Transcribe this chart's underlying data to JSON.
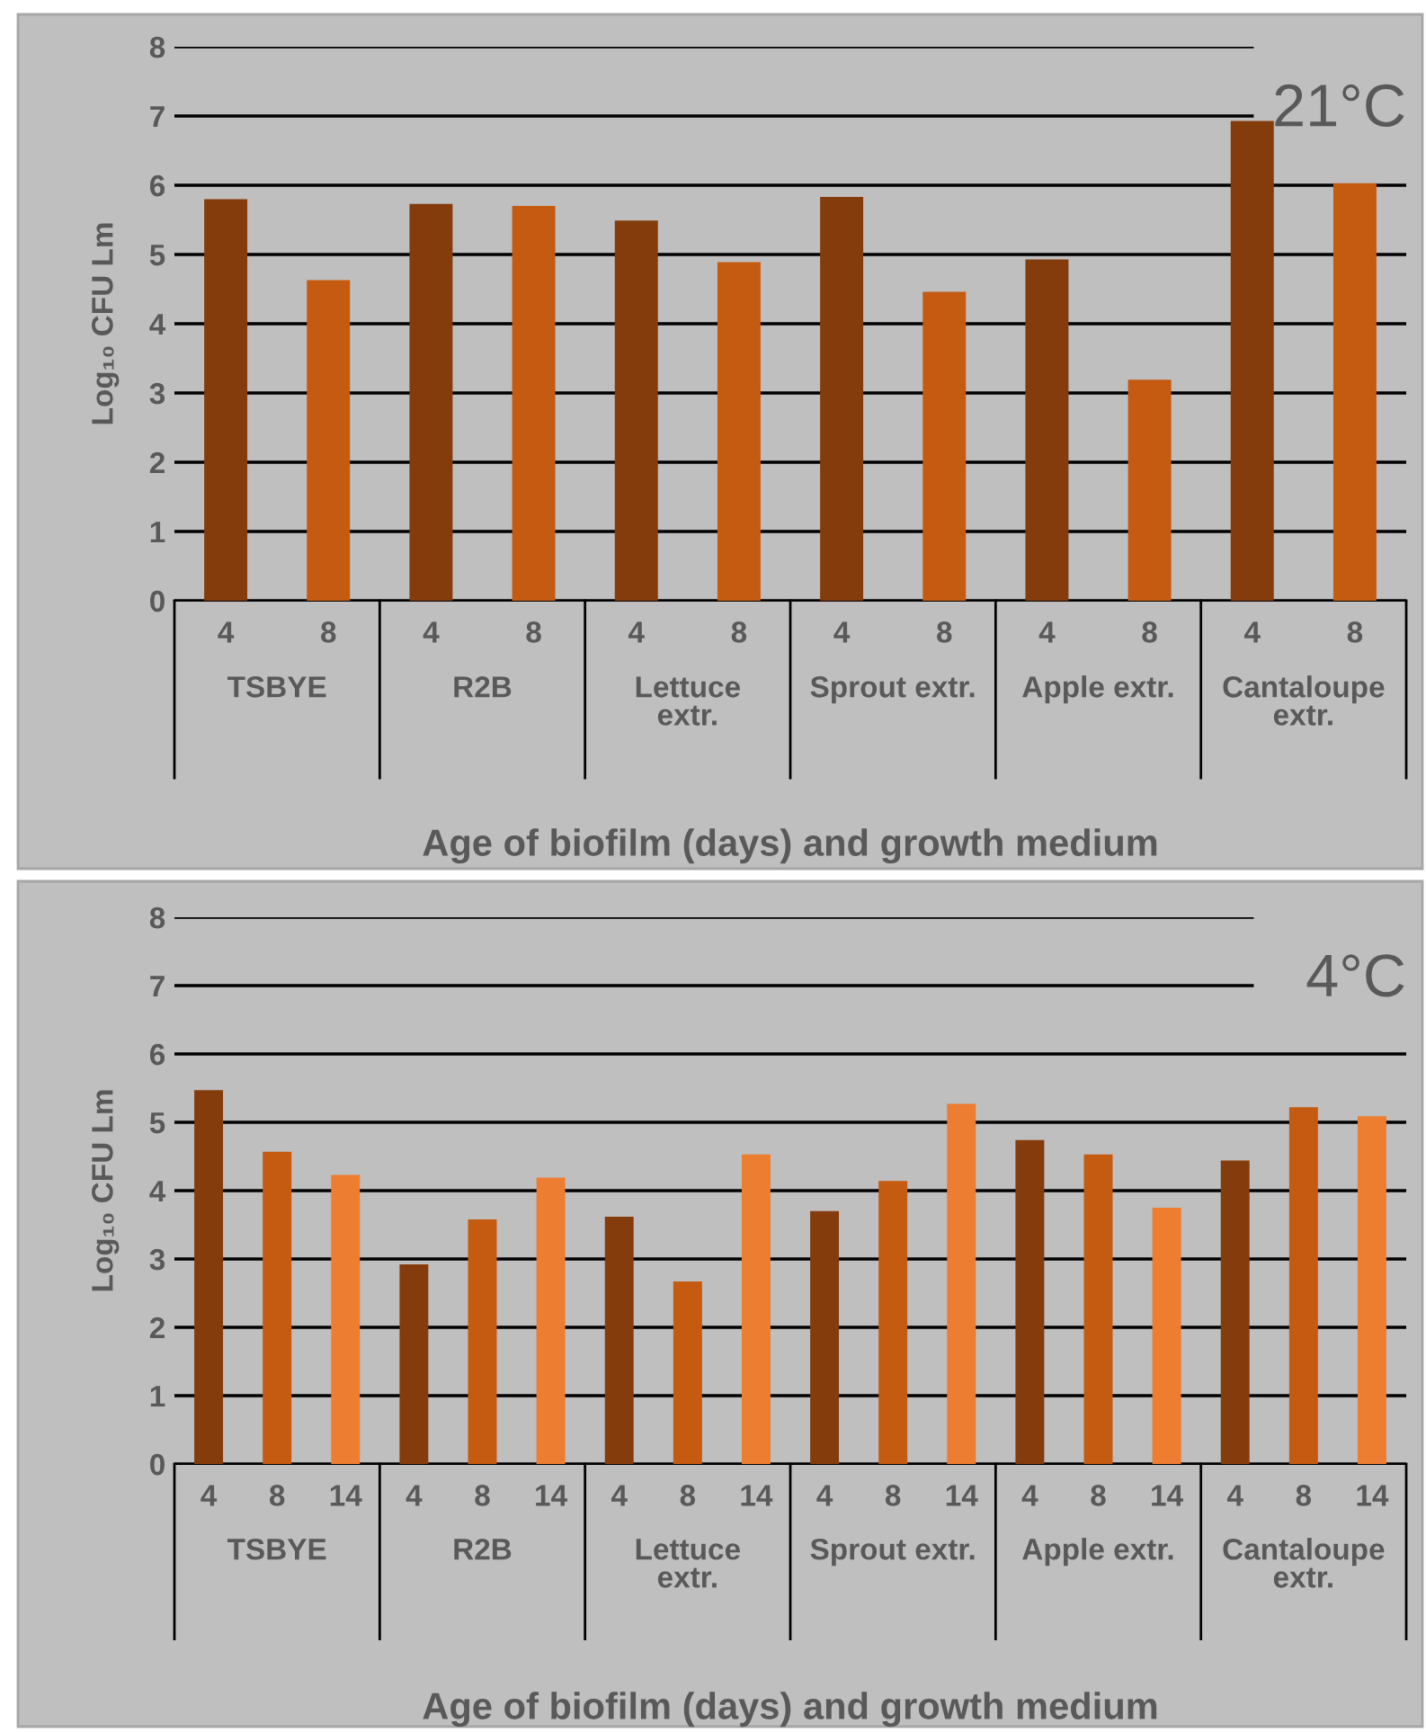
{
  "chart_data": [
    {
      "type": "bar",
      "xlabel": "Age of biofilm (days) and growth medium",
      "ylabel": "Log₁₀ CFU Lm",
      "categories": [
        "4",
        "8",
        "4",
        "8",
        "4",
        "8",
        "4",
        "8",
        "4",
        "8",
        "4",
        "8"
      ],
      "values": [
        5.8,
        4.63,
        5.73,
        5.7,
        5.49,
        4.89,
        5.83,
        4.46,
        4.93,
        3.19,
        6.93,
        6.03
      ],
      "colors": [
        "#843c0c",
        "#c55a11",
        "#843c0c",
        "#c55a11",
        "#843c0c",
        "#c55a11",
        "#843c0c",
        "#c55a11",
        "#843c0c",
        "#c55a11",
        "#843c0c",
        "#c55a11"
      ],
      "ylim": [
        0,
        8
      ],
      "yticks": [
        0,
        1,
        2,
        3,
        4,
        5,
        6,
        7,
        8
      ],
      "grid": "y",
      "annotations": [
        "21°C",
        "TSBYE",
        "R2B",
        "Lettuce\nextr.",
        "Sprout extr.",
        "Apple extr.",
        "Cantaloupe\nextr."
      ]
    },
    {
      "type": "bar",
      "xlabel": "Age of biofilm (days) and growth medium",
      "ylabel": "Log₁₀ CFU Lm",
      "categories": [
        "4",
        "8",
        "14",
        "4",
        "8",
        "14",
        "4",
        "8",
        "14",
        "4",
        "8",
        "14",
        "4",
        "8",
        "14",
        "4",
        "8",
        "14"
      ],
      "values": [
        5.47,
        4.57,
        4.23,
        2.92,
        3.58,
        4.19,
        3.62,
        2.67,
        4.53,
        3.7,
        4.14,
        5.27,
        4.74,
        4.53,
        3.75,
        4.44,
        5.22,
        5.09
      ],
      "colors": [
        "#843c0c",
        "#c55a11",
        "#ed7d31",
        "#843c0c",
        "#c55a11",
        "#ed7d31",
        "#843c0c",
        "#c55a11",
        "#ed7d31",
        "#843c0c",
        "#c55a11",
        "#ed7d31",
        "#843c0c",
        "#c55a11",
        "#ed7d31",
        "#843c0c",
        "#c55a11",
        "#ed7d31"
      ],
      "ylim": [
        0,
        8
      ],
      "yticks": [
        0,
        1,
        2,
        3,
        4,
        5,
        6,
        7,
        8
      ],
      "grid": "y",
      "annotations": [
        "4°C",
        "TSBYE",
        "R2B",
        "Lettuce\nextr.",
        "Sprout extr.",
        "Apple extr.",
        "Cantaloupe\nextr."
      ]
    }
  ]
}
